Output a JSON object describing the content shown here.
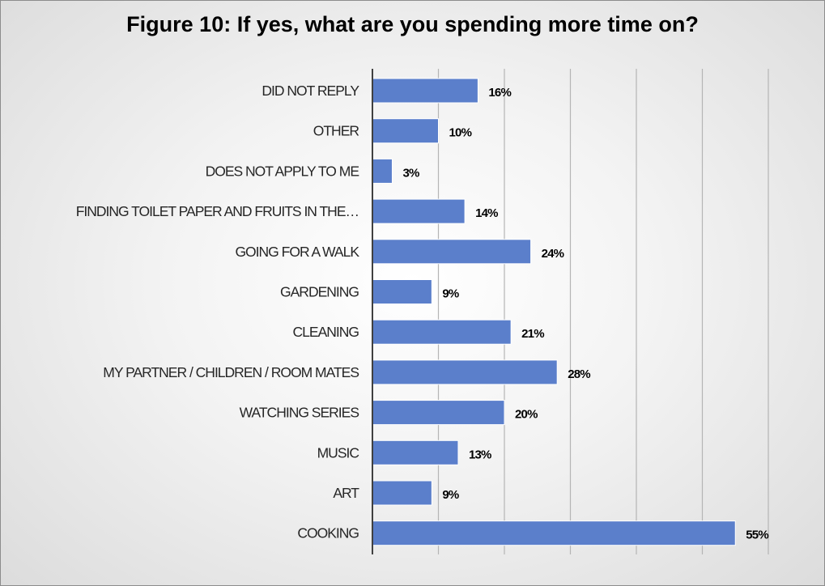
{
  "chart_data": {
    "type": "bar",
    "orientation": "horizontal",
    "title": "Figure 10: If yes, what are you spending more time on?",
    "xlabel": "",
    "ylabel": "",
    "categories": [
      "DID NOT REPLY",
      "OTHER",
      "DOES NOT APPLY TO ME",
      "FINDING TOILET PAPER AND FRUITS IN THE…",
      "GOING FOR A WALK",
      "GARDENING",
      "CLEANING",
      "MY PARTNER  / CHILDREN / ROOM MATES",
      "WATCHING SERIES",
      "MUSIC",
      "ART",
      "COOKING"
    ],
    "values": [
      16,
      10,
      3,
      14,
      24,
      9,
      21,
      28,
      20,
      13,
      9,
      55
    ],
    "data_labels": [
      "16%",
      "10%",
      "3%",
      "14%",
      "24%",
      "9%",
      "21%",
      "28%",
      "20%",
      "13%",
      "9%",
      "55%"
    ],
    "value_unit": "%",
    "xlim": [
      0,
      60
    ],
    "gridlines": "vertical",
    "legend": "none",
    "colors": {
      "bar": "#5b7fcb",
      "bar_border": "#ffffff",
      "grid": "#b5b5b5",
      "axis": "#404040"
    }
  }
}
